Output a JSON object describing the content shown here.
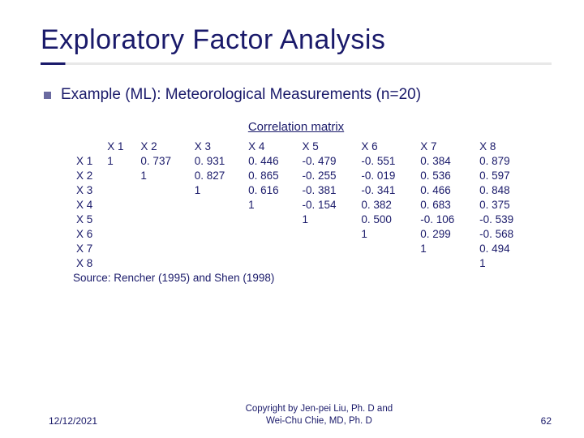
{
  "title": "Exploratory Factor Analysis",
  "subtitle": "Example (ML): Meteorological Measurements (n=20)",
  "matrix_label": "Correlation matrix",
  "table": {
    "col_headers": [
      "X 1",
      "X 2",
      "X 3",
      "X 4",
      "X 5",
      "X 6",
      "X 7",
      "X 8"
    ],
    "row_headers": [
      "X 1",
      "X 2",
      "X 3",
      "X 4",
      "X 5",
      "X 6",
      "X 7",
      "X 8"
    ],
    "cells": [
      [
        "1",
        "0. 737",
        "0. 931",
        "0. 446",
        "-0. 479",
        "-0. 551",
        "0. 384",
        "0. 879"
      ],
      [
        "",
        "1",
        "0. 827",
        "0. 865",
        "-0. 255",
        "-0. 019",
        "0. 536",
        "0. 597"
      ],
      [
        "",
        "",
        "1",
        "0. 616",
        "-0. 381",
        "-0. 341",
        "0. 466",
        "0. 848"
      ],
      [
        "",
        "",
        "",
        "1",
        "-0. 154",
        "0. 382",
        "0. 683",
        "0. 375"
      ],
      [
        "",
        "",
        "",
        "",
        "1",
        "0. 500",
        "-0. 106",
        "-0. 539"
      ],
      [
        "",
        "",
        "",
        "",
        "",
        "1",
        "0. 299",
        "-0. 568"
      ],
      [
        "",
        "",
        "",
        "",
        "",
        "",
        "1",
        "0. 494"
      ],
      [
        "",
        "",
        "",
        "",
        "",
        "",
        "",
        "1"
      ]
    ]
  },
  "source": "Source: Rencher (1995) and Shen (1998)",
  "footer": {
    "date": "12/12/2021",
    "copyright_line1": "Copyright by Jen-pei Liu, Ph. D and",
    "copyright_line2": "Wei-Chu Chie, MD, Ph. D",
    "page": "62"
  },
  "colors": {
    "text": "#1a1a6a",
    "bullet": "#6a6aa0",
    "background": "#ffffff"
  },
  "typography": {
    "title_fontsize": 34,
    "subtitle_fontsize": 19,
    "body_fontsize": 13.5,
    "footer_fontsize": 12
  }
}
